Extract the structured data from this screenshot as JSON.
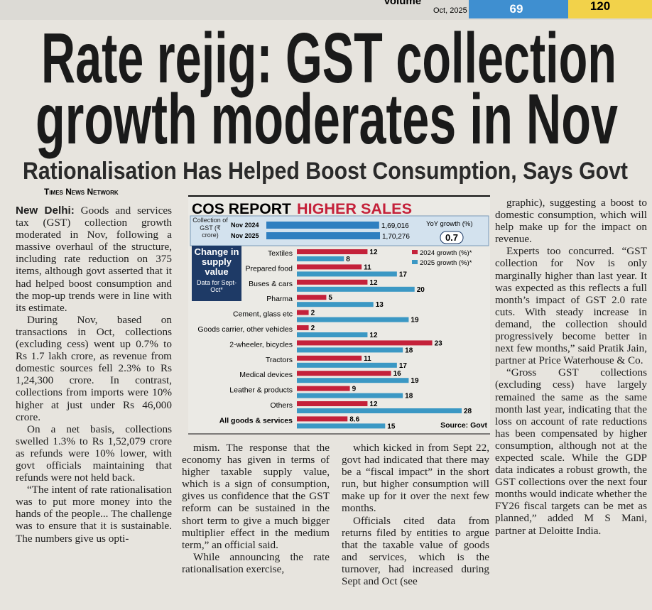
{
  "top_strip": {
    "label": "Volume",
    "date": "Oct, 2025",
    "values": [
      "69",
      "120"
    ]
  },
  "headline": [
    "Rate rejig: GST collection",
    "growth moderates in Nov"
  ],
  "subheadline": "Rationalisation Has Helped Boost Consumption, Says Govt",
  "byline": "Times News Network",
  "article": {
    "dateline": "New Delhi:",
    "columns": [
      {
        "paragraphs": [
          "Goods and services tax (GST) collection growth moderated in Nov, following a massive overhaul of the structure, including rate reduction on 375 items, although govt asserted that it had helped boost consumption and the mop-up trends were in line with its estimate.",
          "During Nov, based on transactions in Oct, collections (excluding cess) went up 0.7% to Rs 1.7 lakh crore, as revenue from domestic sources fell 2.3% to Rs 1,24,300 crore. In contrast, collections from imports were 10% higher at just under Rs 46,000 crore.",
          "On a net basis, collections swelled 1.3% to Rs 1,52,079 crore as refunds were 10% lower, with govt officials maintaining that refunds were not held back.",
          "“The intent of rate rationalisation was to put more money into the hands of the people... The challenge was to ensure that it is sustainable. The numbers give us opti-"
        ]
      },
      {
        "paragraphs": [
          "mism. The response that the economy has given in terms of higher taxable supply value, which is a sign of consumption, gives us confidence that the GST reform can be sustained in the short term to give a much bigger multiplier effect in the medium term,” an official said.",
          "While announcing the rate rationalisation exercise,"
        ]
      },
      {
        "paragraphs": [
          "which kicked in from Sept 22, govt had indicated that there may be a “fiscal impact” in the short run, but higher consumption will make up for it over the next few months.",
          "Officials cited data from returns filed by entities to argue that the taxable value of goods and services, which is the turnover, had increased during Sept and Oct (see"
        ]
      },
      {
        "paragraphs": [
          "graphic), suggesting a boost to domestic consumption, which will help make up for the impact on revenue.",
          "Experts too concurred. “GST collection for Nov is only marginally higher than last year. It was expected as this reflects a full month’s impact of GST 2.0 rate cuts. With steady increase in demand, the collection should progressively become better in next few months,” said Pratik Jain, partner at Price Waterhouse & Co.",
          "“Gross GST collections (excluding cess) have largely remained the same as the same month last year, indicating that the loss on account of rate reductions has been compensated by higher consumption, although not at the expected scale. While the GDP data indicates a robust growth, the GST collections over the next four months would indicate whether the FY26 fiscal targets can be met as planned,” added M S Mani, partner at Deloitte India."
        ]
      }
    ]
  },
  "graphic": {
    "title": "COS REPORT",
    "subtitle": "HIGHER SALES",
    "collection": {
      "label": "Collection of GST (₹ crore)",
      "periods": [
        "Nov 2024",
        "Nov 2025"
      ],
      "values": [
        169016,
        170276
      ],
      "value_labels": [
        "1,69,016",
        "1,70,276"
      ],
      "color": "#2f7fc0",
      "growth_label": "YoY growth (%)",
      "growth": 0.7
    },
    "supply": {
      "label": "Change in supply value",
      "note": "Data for Sept-Oct*",
      "categories": [
        "Textiles",
        "Prepared food",
        "Buses & cars",
        "Pharma",
        "Cement, glass etc",
        "Goods carrier, other vehicles",
        "2-wheeler, bicycles",
        "Tractors",
        "Medical devices",
        "Leather & products",
        "Others",
        "All goods & services"
      ],
      "series": [
        {
          "name": "2024 growth (%)*",
          "color": "#c4213a",
          "values": [
            12,
            11,
            12,
            5,
            2,
            2,
            23,
            11,
            16,
            9,
            12,
            8.6
          ]
        },
        {
          "name": "2025 growth (%)*",
          "color": "#3b98c4",
          "values": [
            8,
            17,
            20,
            13,
            19,
            12,
            18,
            17,
            19,
            18,
            28,
            15
          ]
        }
      ]
    },
    "source": "Source: Govt"
  }
}
